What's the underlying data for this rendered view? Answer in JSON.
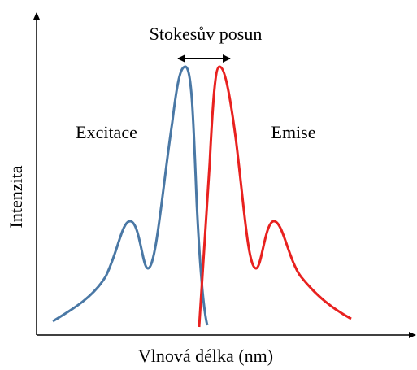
{
  "labels": {
    "shift": "Stokesův posun",
    "excitation": "Excitace",
    "emission": "Emise"
  },
  "axes": {
    "y": "Intenzita",
    "x": "Vlnová délka (nm)"
  }
}
